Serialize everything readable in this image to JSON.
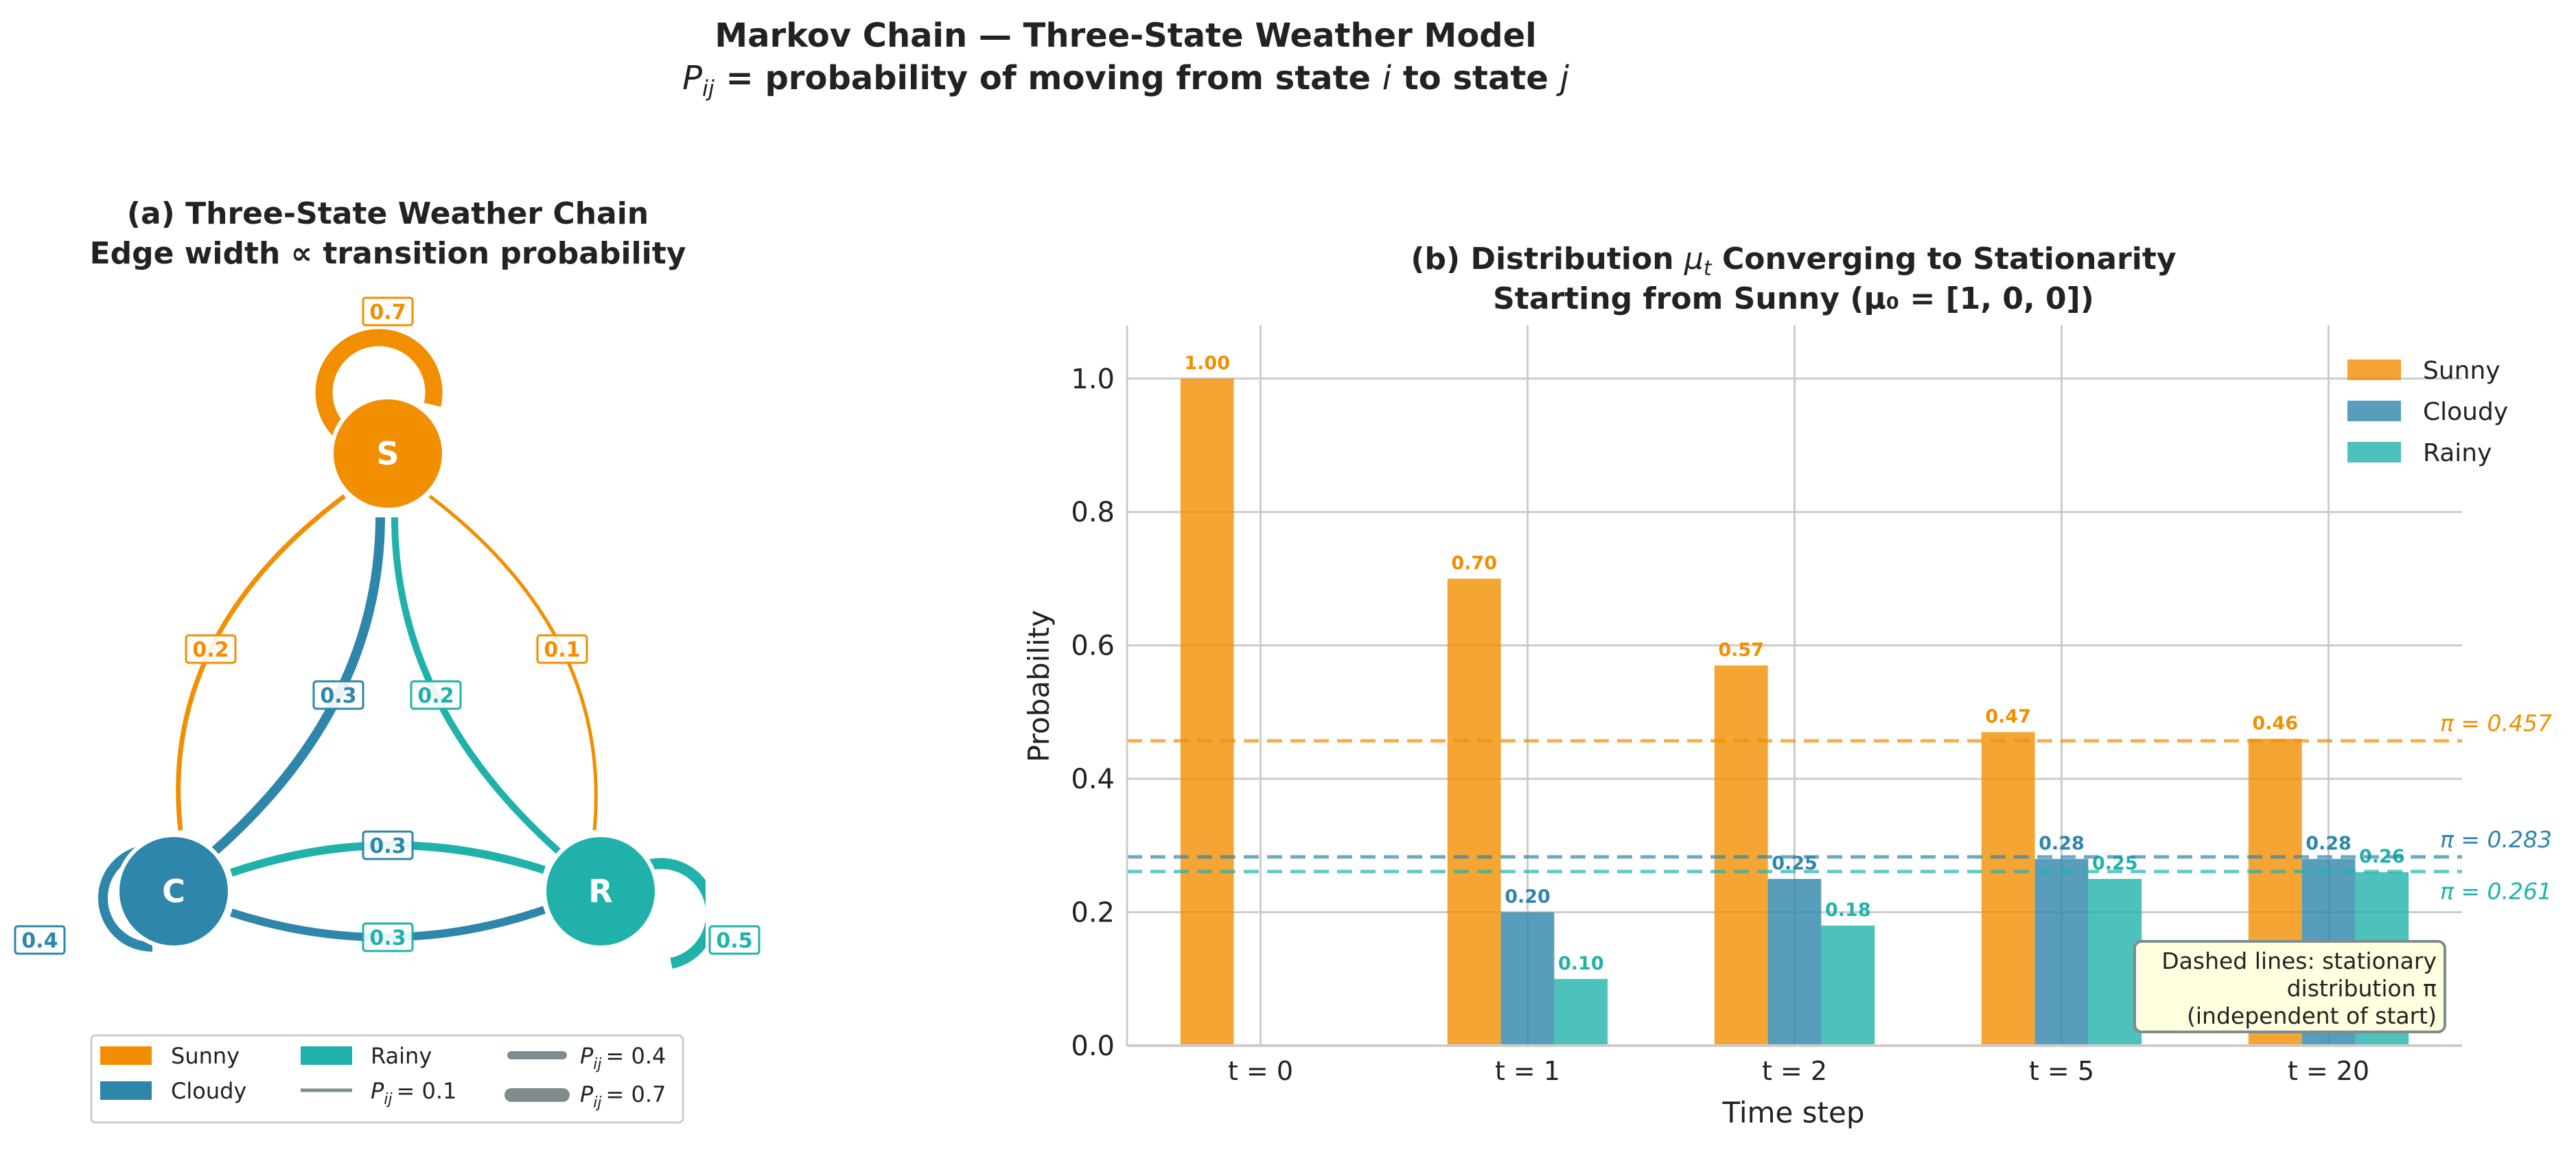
{
  "title": {
    "line1": "Markov Chain — Three-State Weather Model",
    "line2_parts": [
      "P",
      "ij",
      " = probability of moving from state ",
      "i",
      " to state ",
      "j"
    ]
  },
  "colors": {
    "sunny": "#F18F01",
    "cloudy": "#2E86AB",
    "rainy": "#20B2AA",
    "neutral": "#7F8C8D"
  },
  "graph": {
    "title_line1": "(a)  Three-State Weather Chain",
    "title_line2": "Edge width ∝ transition probability",
    "nodes": [
      {
        "id": "S",
        "label": "S",
        "state": "Sunny"
      },
      {
        "id": "C",
        "label": "C",
        "state": "Cloudy"
      },
      {
        "id": "R",
        "label": "R",
        "state": "Rainy"
      }
    ],
    "edges": [
      {
        "from": "S",
        "to": "S",
        "p": "0.7"
      },
      {
        "from": "S",
        "to": "C",
        "p": "0.2"
      },
      {
        "from": "S",
        "to": "R",
        "p": "0.1"
      },
      {
        "from": "C",
        "to": "C",
        "p": "0.4"
      },
      {
        "from": "C",
        "to": "S",
        "p": "0.3"
      },
      {
        "from": "C",
        "to": "R",
        "p": "0.3"
      },
      {
        "from": "R",
        "to": "R",
        "p": "0.5"
      },
      {
        "from": "R",
        "to": "S",
        "p": "0.2"
      },
      {
        "from": "R",
        "to": "C",
        "p": "0.3"
      }
    ],
    "legend": {
      "sunny": "Sunny",
      "cloudy": "Cloudy",
      "rainy": "Rainy",
      "p01": "= 0.1",
      "p04": "= 0.4",
      "p07": "= 0.7",
      "p_sym": "P",
      "p_sub": "ij"
    }
  },
  "chart_data": {
    "type": "bar",
    "title_line1_parts": [
      "(b)  Distribution ",
      "μ",
      "t",
      " Converging to Stationarity"
    ],
    "title_line2": "Starting from Sunny (μ₀ = [1, 0, 0])",
    "xlabel": "Time step",
    "ylabel": "Probability",
    "categories": [
      "t = 0",
      "t = 1",
      "t = 2",
      "t = 5",
      "t = 20"
    ],
    "ylim": [
      0,
      1.08
    ],
    "yticks": [
      "0.0",
      "0.2",
      "0.4",
      "0.6",
      "0.8",
      "1.0"
    ],
    "grid": true,
    "legend_position": "top-right",
    "series": [
      {
        "name": "Sunny",
        "color": "#F18F01",
        "values": [
          1.0,
          0.7,
          0.57,
          0.47,
          0.46
        ],
        "labels": [
          "1.00",
          "0.70",
          "0.57",
          "0.47",
          "0.46"
        ]
      },
      {
        "name": "Cloudy",
        "color": "#2E86AB",
        "values": [
          0,
          0.2,
          0.25,
          0.28,
          0.28
        ],
        "labels": [
          "",
          "0.20",
          "0.25",
          "0.28",
          "0.28"
        ]
      },
      {
        "name": "Rainy",
        "color": "#20B2AA",
        "values": [
          0,
          0.1,
          0.18,
          0.25,
          0.26
        ],
        "labels": [
          "",
          "0.10",
          "0.18",
          "0.25",
          "0.26"
        ]
      }
    ],
    "stationary": [
      {
        "value": 0.457,
        "label": "π = 0.457",
        "color": "#F18F01"
      },
      {
        "value": 0.283,
        "label": "π = 0.283",
        "color": "#2E86AB"
      },
      {
        "value": 0.261,
        "label": "π = 0.261",
        "color": "#20B2AA"
      }
    ],
    "annotation": [
      "Dashed lines: stationary",
      "distribution π",
      "(independent of start)"
    ]
  }
}
